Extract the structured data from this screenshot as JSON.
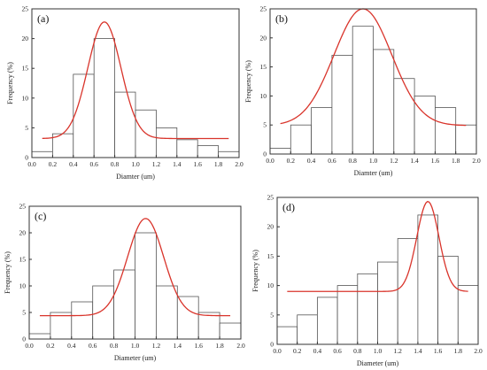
{
  "chart_data": [
    {
      "type": "bar",
      "panel_label": "(a)",
      "xlabel": "Diamter (um)",
      "ylabel": "Frequency (%)",
      "xlim": [
        0.0,
        2.0
      ],
      "ylim": [
        0,
        25
      ],
      "xticks": [
        "0.0",
        "0.2",
        "0.4",
        "0.6",
        "0.8",
        "1.0",
        "1.2",
        "1.4",
        "1.6",
        "1.8",
        "2.0"
      ],
      "yticks": [
        "0",
        "5",
        "10",
        "15",
        "20",
        "25"
      ],
      "bin_width": 0.2,
      "bins": [
        0.0,
        0.2,
        0.4,
        0.6,
        0.8,
        1.0,
        1.2,
        1.4,
        1.6,
        1.8
      ],
      "values": [
        1,
        4,
        14,
        20,
        11,
        8,
        5,
        3,
        2,
        1
      ],
      "fit": {
        "type": "gaussian",
        "baseline": 3.2,
        "center": 0.7,
        "peak": 22.8,
        "sigma": 0.16,
        "x_range": [
          0.1,
          1.9
        ]
      }
    },
    {
      "type": "bar",
      "panel_label": "(b)",
      "xlabel": "Diamter (um)",
      "ylabel": "Frequency (%)",
      "xlim": [
        0.0,
        2.0
      ],
      "ylim": [
        0,
        25
      ],
      "xticks": [
        "0.0",
        "0.2",
        "0.4",
        "0.6",
        "0.8",
        "1.0",
        "1.2",
        "1.4",
        "1.6",
        "1.8",
        "2.0"
      ],
      "yticks": [
        "0",
        "5",
        "10",
        "15",
        "20",
        "25"
      ],
      "bin_width": 0.2,
      "bins": [
        0.0,
        0.2,
        0.4,
        0.6,
        0.8,
        1.0,
        1.2,
        1.4,
        1.6,
        1.8
      ],
      "values": [
        1,
        5,
        8,
        17,
        22,
        18,
        13,
        10,
        8,
        5
      ],
      "fit": {
        "type": "gaussian",
        "baseline": 4.9,
        "center": 0.9,
        "peak": 25.0,
        "sigma": 0.28,
        "x_range": [
          0.1,
          1.9
        ]
      }
    },
    {
      "type": "bar",
      "panel_label": "(c)",
      "xlabel": "Diameter (um)",
      "ylabel": "Frequency (%)",
      "xlim": [
        0.0,
        2.0
      ],
      "ylim": [
        0,
        25
      ],
      "xticks": [
        "0.0",
        "0.2",
        "0.4",
        "0.6",
        "0.8",
        "1.0",
        "1.2",
        "1.4",
        "1.6",
        "1.8",
        "2.0"
      ],
      "yticks": [
        "0",
        "5",
        "10",
        "15",
        "20",
        "25"
      ],
      "bin_width": 0.2,
      "bins": [
        0.0,
        0.2,
        0.4,
        0.6,
        0.8,
        1.0,
        1.2,
        1.4,
        1.6,
        1.8
      ],
      "values": [
        1,
        5,
        7,
        10,
        13,
        20,
        10,
        8,
        5,
        3
      ],
      "fit": {
        "type": "gaussian",
        "baseline": 4.4,
        "center": 1.1,
        "peak": 22.7,
        "sigma": 0.17,
        "x_range": [
          0.1,
          1.9
        ]
      }
    },
    {
      "type": "bar",
      "panel_label": "(d)",
      "xlabel": "Diameter (um)",
      "ylabel": "Frequency (%)",
      "xlim": [
        0.0,
        2.0
      ],
      "ylim": [
        0,
        25
      ],
      "xticks": [
        "0.0",
        "0.2",
        "0.4",
        "0.6",
        "0.8",
        "1.0",
        "1.2",
        "1.4",
        "1.6",
        "1.8",
        "2.0"
      ],
      "yticks": [
        "0",
        "5",
        "10",
        "15",
        "20",
        "25"
      ],
      "bin_width": 0.2,
      "bins": [
        0.0,
        0.2,
        0.4,
        0.6,
        0.8,
        1.0,
        1.2,
        1.4,
        1.6,
        1.8
      ],
      "values": [
        3,
        5,
        8,
        10,
        12,
        14,
        18,
        22,
        15,
        10
      ],
      "fit": {
        "type": "gaussian",
        "baseline": 9.0,
        "center": 1.5,
        "peak": 24.3,
        "sigma": 0.11,
        "x_range": [
          0.1,
          1.9
        ]
      }
    }
  ],
  "colors": {
    "bar_fill": "#ffffff",
    "bar_stroke": "#555555",
    "fit_curve": "#d9342b",
    "axis": "#333333"
  }
}
